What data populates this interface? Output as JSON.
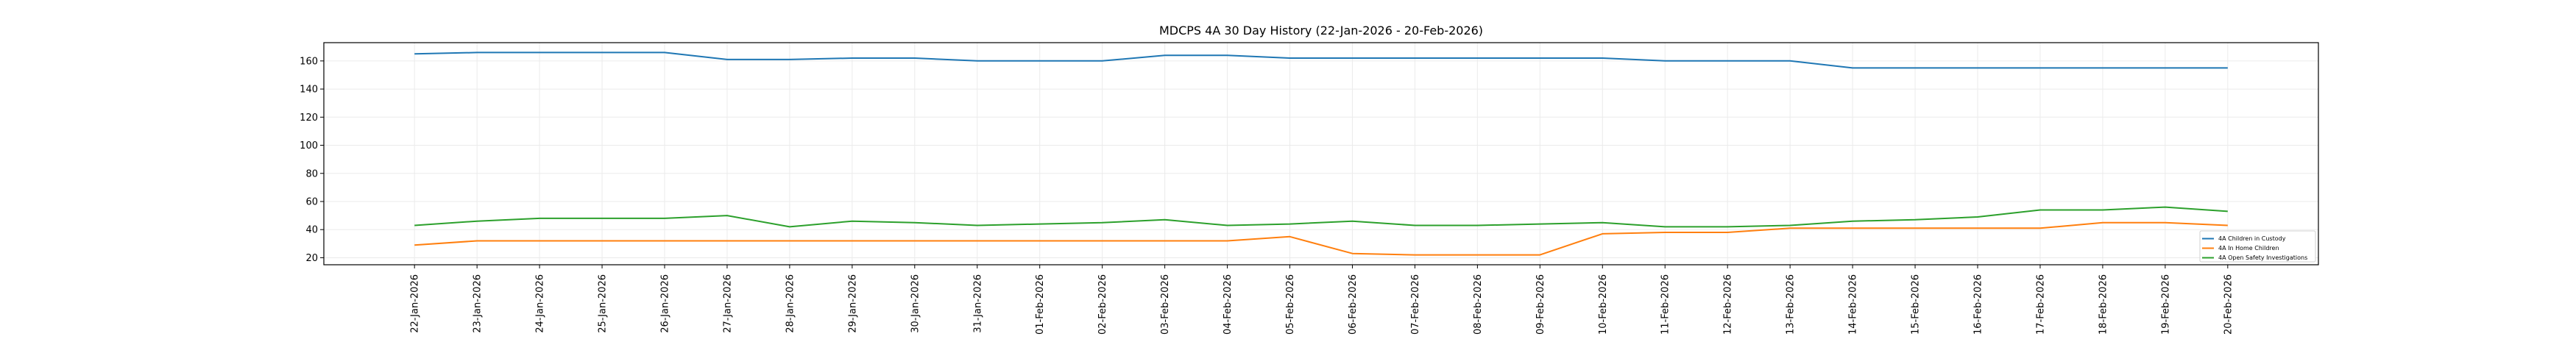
{
  "chart_data": {
    "type": "line",
    "title": "MDCPS 4A 30 Day History (22-Jan-2026 - 20-Feb-2026)",
    "xlabel": "",
    "ylabel": "",
    "x": [
      "22-Jan-2026",
      "23-Jan-2026",
      "24-Jan-2026",
      "25-Jan-2026",
      "26-Jan-2026",
      "27-Jan-2026",
      "28-Jan-2026",
      "29-Jan-2026",
      "30-Jan-2026",
      "31-Jan-2026",
      "01-Feb-2026",
      "02-Feb-2026",
      "03-Feb-2026",
      "04-Feb-2026",
      "05-Feb-2026",
      "06-Feb-2026",
      "07-Feb-2026",
      "08-Feb-2026",
      "09-Feb-2026",
      "10-Feb-2026",
      "11-Feb-2026",
      "12-Feb-2026",
      "13-Feb-2026",
      "14-Feb-2026",
      "15-Feb-2026",
      "16-Feb-2026",
      "17-Feb-2026",
      "18-Feb-2026",
      "19-Feb-2026",
      "20-Feb-2026"
    ],
    "ylim": [
      15,
      173
    ],
    "yticks": [
      20,
      40,
      60,
      80,
      100,
      120,
      140,
      160
    ],
    "grid": true,
    "legend_position": "lower-right",
    "series": [
      {
        "name": "4A Children in Custody",
        "color": "#1f77b4",
        "values": [
          165,
          166,
          166,
          166,
          166,
          161,
          161,
          162,
          162,
          160,
          160,
          160,
          164,
          164,
          162,
          162,
          162,
          162,
          162,
          162,
          160,
          160,
          160,
          155,
          155,
          155,
          155,
          155,
          155,
          155
        ]
      },
      {
        "name": "4A In Home Children",
        "color": "#ff7f0e",
        "values": [
          29,
          32,
          32,
          32,
          32,
          32,
          32,
          32,
          32,
          32,
          32,
          32,
          32,
          32,
          35,
          23,
          22,
          22,
          22,
          37,
          38,
          38,
          41,
          41,
          41,
          41,
          41,
          45,
          45,
          43
        ]
      },
      {
        "name": "4A Open Safety Investigations",
        "color": "#2ca02c",
        "values": [
          43,
          46,
          48,
          48,
          48,
          50,
          42,
          46,
          45,
          43,
          44,
          45,
          47,
          43,
          44,
          46,
          43,
          43,
          44,
          45,
          42,
          42,
          43,
          46,
          47,
          49,
          54,
          54,
          56,
          53
        ]
      }
    ]
  }
}
